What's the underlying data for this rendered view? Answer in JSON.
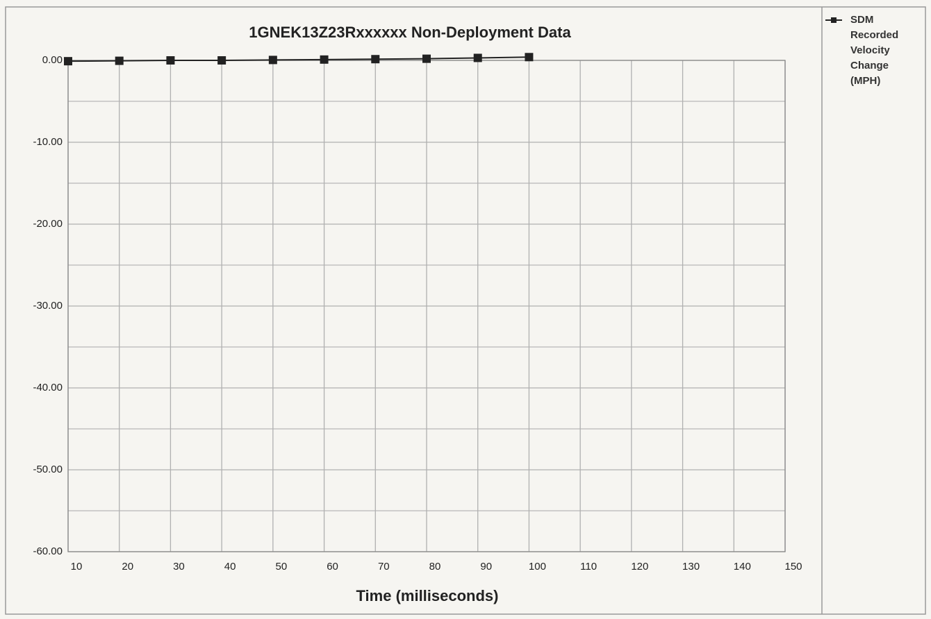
{
  "chart_data": {
    "type": "line",
    "title": "1GNEK13Z23Rxxxxxx  Non-Deployment Data",
    "xlabel": "Time (milliseconds)",
    "x": [
      10,
      20,
      30,
      40,
      50,
      60,
      70,
      80,
      90,
      100
    ],
    "series": [
      {
        "name": "SDM Recorded Velocity Change (MPH)",
        "color": "#222222",
        "values": [
          -0.1,
          -0.05,
          0,
          0,
          0.05,
          0.1,
          0.15,
          0.2,
          0.3,
          0.4
        ]
      }
    ],
    "xlim": [
      10,
      150
    ],
    "xticks": [
      10,
      20,
      30,
      40,
      50,
      60,
      70,
      80,
      90,
      100,
      110,
      120,
      130,
      140,
      150
    ],
    "ylim": [
      -60,
      0
    ],
    "yticks": [
      {
        "value": 0,
        "label": "0.00"
      },
      {
        "value": -10,
        "label": "-10.00"
      },
      {
        "value": -20,
        "label": "-20.00"
      },
      {
        "value": -30,
        "label": "-30.00"
      },
      {
        "value": -40,
        "label": "-40.00"
      },
      {
        "value": -50,
        "label": "-50.00"
      },
      {
        "value": -60,
        "label": "-60.00"
      }
    ],
    "yminorticks": [
      -5,
      -15,
      -25,
      -35,
      -45,
      -55
    ],
    "grid": true,
    "legend": "right"
  }
}
